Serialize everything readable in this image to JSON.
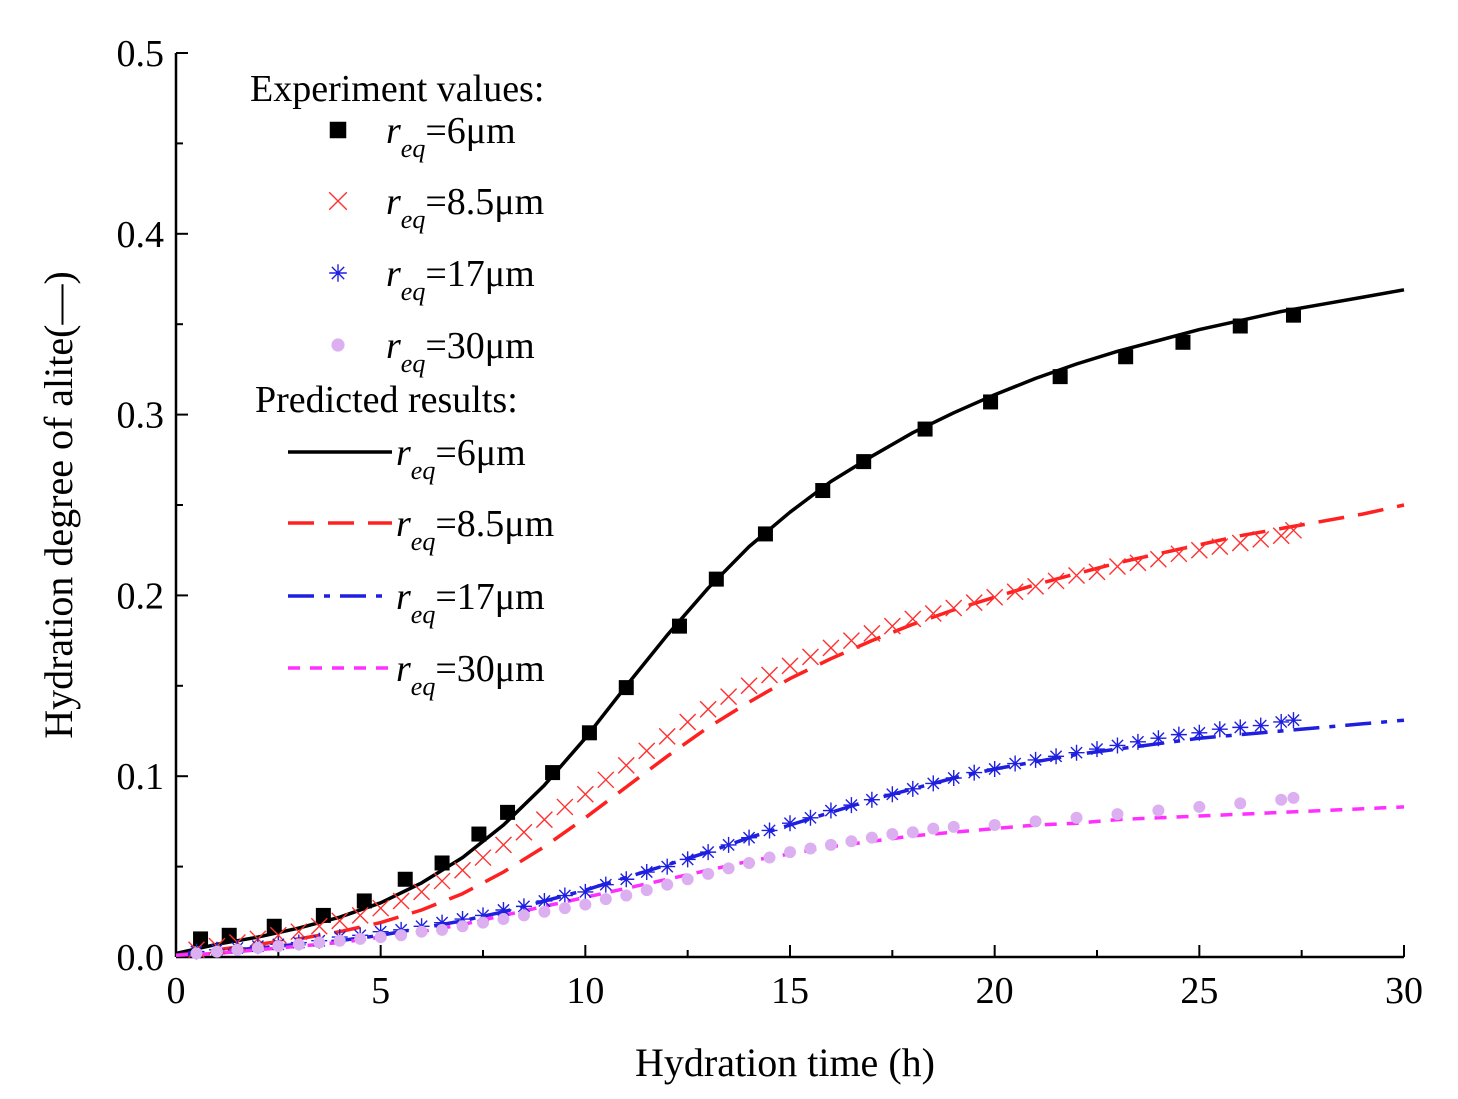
{
  "chart_data": {
    "type": "scatter",
    "xlabel": "Hydration time (h)",
    "ylabel": "Hydration degree of alite(—)",
    "xlim": [
      0,
      30
    ],
    "ylim": [
      0,
      0.5
    ],
    "xticks": [
      "0",
      "5",
      "10",
      "15",
      "20",
      "25",
      "30"
    ],
    "yticks": [
      "0.0",
      "0.1",
      "0.2",
      "0.3",
      "0.4",
      "0.5"
    ],
    "legend": {
      "experiment_heading": "Experiment values:",
      "predicted_heading": "Predicted results:",
      "r_symbol": "r",
      "r_sub": "eq"
    },
    "experiment_series": [
      {
        "name": "=6μm",
        "marker": "square",
        "color": "#000000",
        "x": [
          0.6,
          1.3,
          2.4,
          3.6,
          4.6,
          5.6,
          6.5,
          7.4,
          8.1,
          9.2,
          10.1,
          11.0,
          12.3,
          13.2,
          14.4,
          15.8,
          16.8,
          18.3,
          19.9,
          21.6,
          23.2,
          24.6,
          26.0,
          27.3
        ],
        "y": [
          0.01,
          0.012,
          0.017,
          0.023,
          0.031,
          0.043,
          0.052,
          0.068,
          0.08,
          0.102,
          0.124,
          0.149,
          0.183,
          0.209,
          0.234,
          0.258,
          0.274,
          0.292,
          0.307,
          0.321,
          0.332,
          0.34,
          0.349,
          0.355
        ]
      },
      {
        "name": "=8.5μm",
        "marker": "x",
        "color": "#ff3030",
        "x": [
          0.5,
          1,
          1.5,
          2,
          2.5,
          3,
          3.5,
          4,
          4.5,
          5,
          5.5,
          6,
          6.5,
          7,
          7.5,
          8,
          8.5,
          9,
          9.5,
          10,
          10.5,
          11,
          11.5,
          12,
          12.5,
          13,
          13.5,
          14,
          14.5,
          15,
          15.5,
          16,
          16.5,
          17,
          17.5,
          18,
          18.5,
          19,
          19.5,
          20,
          20.5,
          21,
          21.5,
          22,
          22.5,
          23,
          23.5,
          24,
          24.5,
          25,
          25.5,
          26,
          26.5,
          27,
          27.3
        ],
        "y": [
          0.004,
          0.006,
          0.008,
          0.01,
          0.012,
          0.014,
          0.017,
          0.02,
          0.023,
          0.027,
          0.031,
          0.036,
          0.042,
          0.048,
          0.055,
          0.062,
          0.069,
          0.076,
          0.083,
          0.09,
          0.098,
          0.106,
          0.114,
          0.122,
          0.13,
          0.137,
          0.144,
          0.15,
          0.156,
          0.161,
          0.166,
          0.171,
          0.175,
          0.179,
          0.183,
          0.187,
          0.19,
          0.193,
          0.196,
          0.199,
          0.202,
          0.205,
          0.208,
          0.211,
          0.213,
          0.216,
          0.218,
          0.22,
          0.223,
          0.225,
          0.227,
          0.229,
          0.231,
          0.233,
          0.236
        ]
      },
      {
        "name": "=17μm",
        "marker": "asterisk",
        "color": "#1f1fe0",
        "x": [
          0.5,
          1,
          1.5,
          2,
          2.5,
          3,
          3.5,
          4,
          4.5,
          5,
          5.5,
          6,
          6.5,
          7,
          7.5,
          8,
          8.5,
          9,
          9.5,
          10,
          10.5,
          11,
          11.5,
          12,
          12.5,
          13,
          13.5,
          14,
          14.5,
          15,
          15.5,
          16,
          16.5,
          17,
          17.5,
          18,
          18.5,
          19,
          19.5,
          20,
          20.5,
          21,
          21.5,
          22,
          22.5,
          23,
          23.5,
          24,
          24.5,
          25,
          25.5,
          26,
          26.5,
          27,
          27.3
        ],
        "y": [
          0.003,
          0.004,
          0.005,
          0.006,
          0.007,
          0.008,
          0.009,
          0.011,
          0.012,
          0.014,
          0.015,
          0.017,
          0.019,
          0.021,
          0.023,
          0.026,
          0.028,
          0.031,
          0.034,
          0.036,
          0.04,
          0.043,
          0.047,
          0.05,
          0.054,
          0.058,
          0.062,
          0.066,
          0.07,
          0.074,
          0.077,
          0.081,
          0.084,
          0.087,
          0.09,
          0.093,
          0.096,
          0.099,
          0.102,
          0.104,
          0.107,
          0.109,
          0.111,
          0.113,
          0.115,
          0.117,
          0.119,
          0.121,
          0.123,
          0.124,
          0.126,
          0.127,
          0.128,
          0.13,
          0.131
        ]
      },
      {
        "name": "=30μm",
        "marker": "circle",
        "color": "#dcb0f0",
        "x": [
          0.5,
          1,
          1.5,
          2,
          2.5,
          3,
          3.5,
          4,
          4.5,
          5,
          5.5,
          6,
          6.5,
          7,
          7.5,
          8,
          8.5,
          9,
          9.5,
          10,
          10.5,
          11,
          11.5,
          12,
          12.5,
          13,
          13.5,
          14,
          14.5,
          15,
          15.5,
          16,
          16.5,
          17,
          17.5,
          18,
          18.5,
          19,
          20,
          21,
          22,
          23,
          24,
          25,
          26,
          27,
          27.3
        ],
        "y": [
          0.002,
          0.003,
          0.004,
          0.005,
          0.006,
          0.007,
          0.008,
          0.009,
          0.01,
          0.011,
          0.012,
          0.014,
          0.015,
          0.017,
          0.019,
          0.021,
          0.023,
          0.025,
          0.027,
          0.029,
          0.032,
          0.034,
          0.037,
          0.04,
          0.043,
          0.046,
          0.049,
          0.052,
          0.055,
          0.058,
          0.06,
          0.062,
          0.064,
          0.066,
          0.068,
          0.069,
          0.071,
          0.072,
          0.073,
          0.075,
          0.077,
          0.079,
          0.081,
          0.083,
          0.085,
          0.087,
          0.088
        ]
      }
    ],
    "predicted_series": [
      {
        "name": "=6μm",
        "style": "solid",
        "color": "#000000",
        "x": [
          0,
          1,
          2,
          3,
          4,
          5,
          6,
          7,
          8,
          9,
          10,
          11,
          12,
          13,
          14,
          15,
          16,
          17,
          18,
          19,
          20,
          21,
          22,
          23,
          24,
          25,
          26,
          27,
          28,
          29,
          30
        ],
        "y": [
          0.002,
          0.007,
          0.011,
          0.016,
          0.022,
          0.03,
          0.041,
          0.055,
          0.073,
          0.095,
          0.121,
          0.15,
          0.178,
          0.204,
          0.227,
          0.246,
          0.263,
          0.277,
          0.29,
          0.301,
          0.311,
          0.32,
          0.328,
          0.335,
          0.341,
          0.347,
          0.352,
          0.357,
          0.361,
          0.365,
          0.369
        ]
      },
      {
        "name": "=8.5μm",
        "style": "dash",
        "color": "#ff2020",
        "x": [
          0,
          1,
          2,
          3,
          4,
          5,
          6,
          7,
          8,
          9,
          10,
          11,
          12,
          13,
          14,
          15,
          16,
          17,
          18,
          19,
          20,
          21,
          22,
          23,
          24,
          25,
          26,
          27,
          28,
          29,
          30
        ],
        "y": [
          0.001,
          0.004,
          0.007,
          0.01,
          0.014,
          0.019,
          0.026,
          0.035,
          0.047,
          0.061,
          0.077,
          0.094,
          0.111,
          0.127,
          0.141,
          0.154,
          0.165,
          0.175,
          0.184,
          0.192,
          0.199,
          0.206,
          0.212,
          0.218,
          0.223,
          0.228,
          0.233,
          0.237,
          0.241,
          0.245,
          0.25
        ]
      },
      {
        "name": "=17μm",
        "style": "dashdot",
        "color": "#1f1fe0",
        "x": [
          0,
          1,
          2,
          3,
          4,
          5,
          6,
          7,
          8,
          9,
          10,
          11,
          12,
          13,
          14,
          15,
          16,
          17,
          18,
          19,
          20,
          21,
          22,
          23,
          24,
          25,
          26,
          27,
          28,
          29,
          30
        ],
        "y": [
          0.001,
          0.003,
          0.005,
          0.007,
          0.009,
          0.012,
          0.016,
          0.02,
          0.025,
          0.031,
          0.037,
          0.044,
          0.051,
          0.058,
          0.066,
          0.073,
          0.08,
          0.087,
          0.093,
          0.099,
          0.104,
          0.108,
          0.112,
          0.115,
          0.118,
          0.121,
          0.123,
          0.125,
          0.127,
          0.129,
          0.131
        ]
      },
      {
        "name": "=30μm",
        "style": "shortdash",
        "color": "#ff30ff",
        "x": [
          0,
          1,
          2,
          3,
          4,
          5,
          6,
          7,
          8,
          9,
          10,
          11,
          12,
          13,
          14,
          15,
          16,
          17,
          18,
          19,
          20,
          21,
          22,
          23,
          24,
          25,
          26,
          27,
          28,
          29,
          30
        ],
        "y": [
          0.001,
          0.002,
          0.004,
          0.006,
          0.008,
          0.011,
          0.014,
          0.018,
          0.023,
          0.028,
          0.033,
          0.038,
          0.043,
          0.048,
          0.053,
          0.057,
          0.061,
          0.064,
          0.067,
          0.069,
          0.071,
          0.073,
          0.074,
          0.076,
          0.077,
          0.078,
          0.079,
          0.08,
          0.081,
          0.082,
          0.083
        ]
      }
    ]
  }
}
